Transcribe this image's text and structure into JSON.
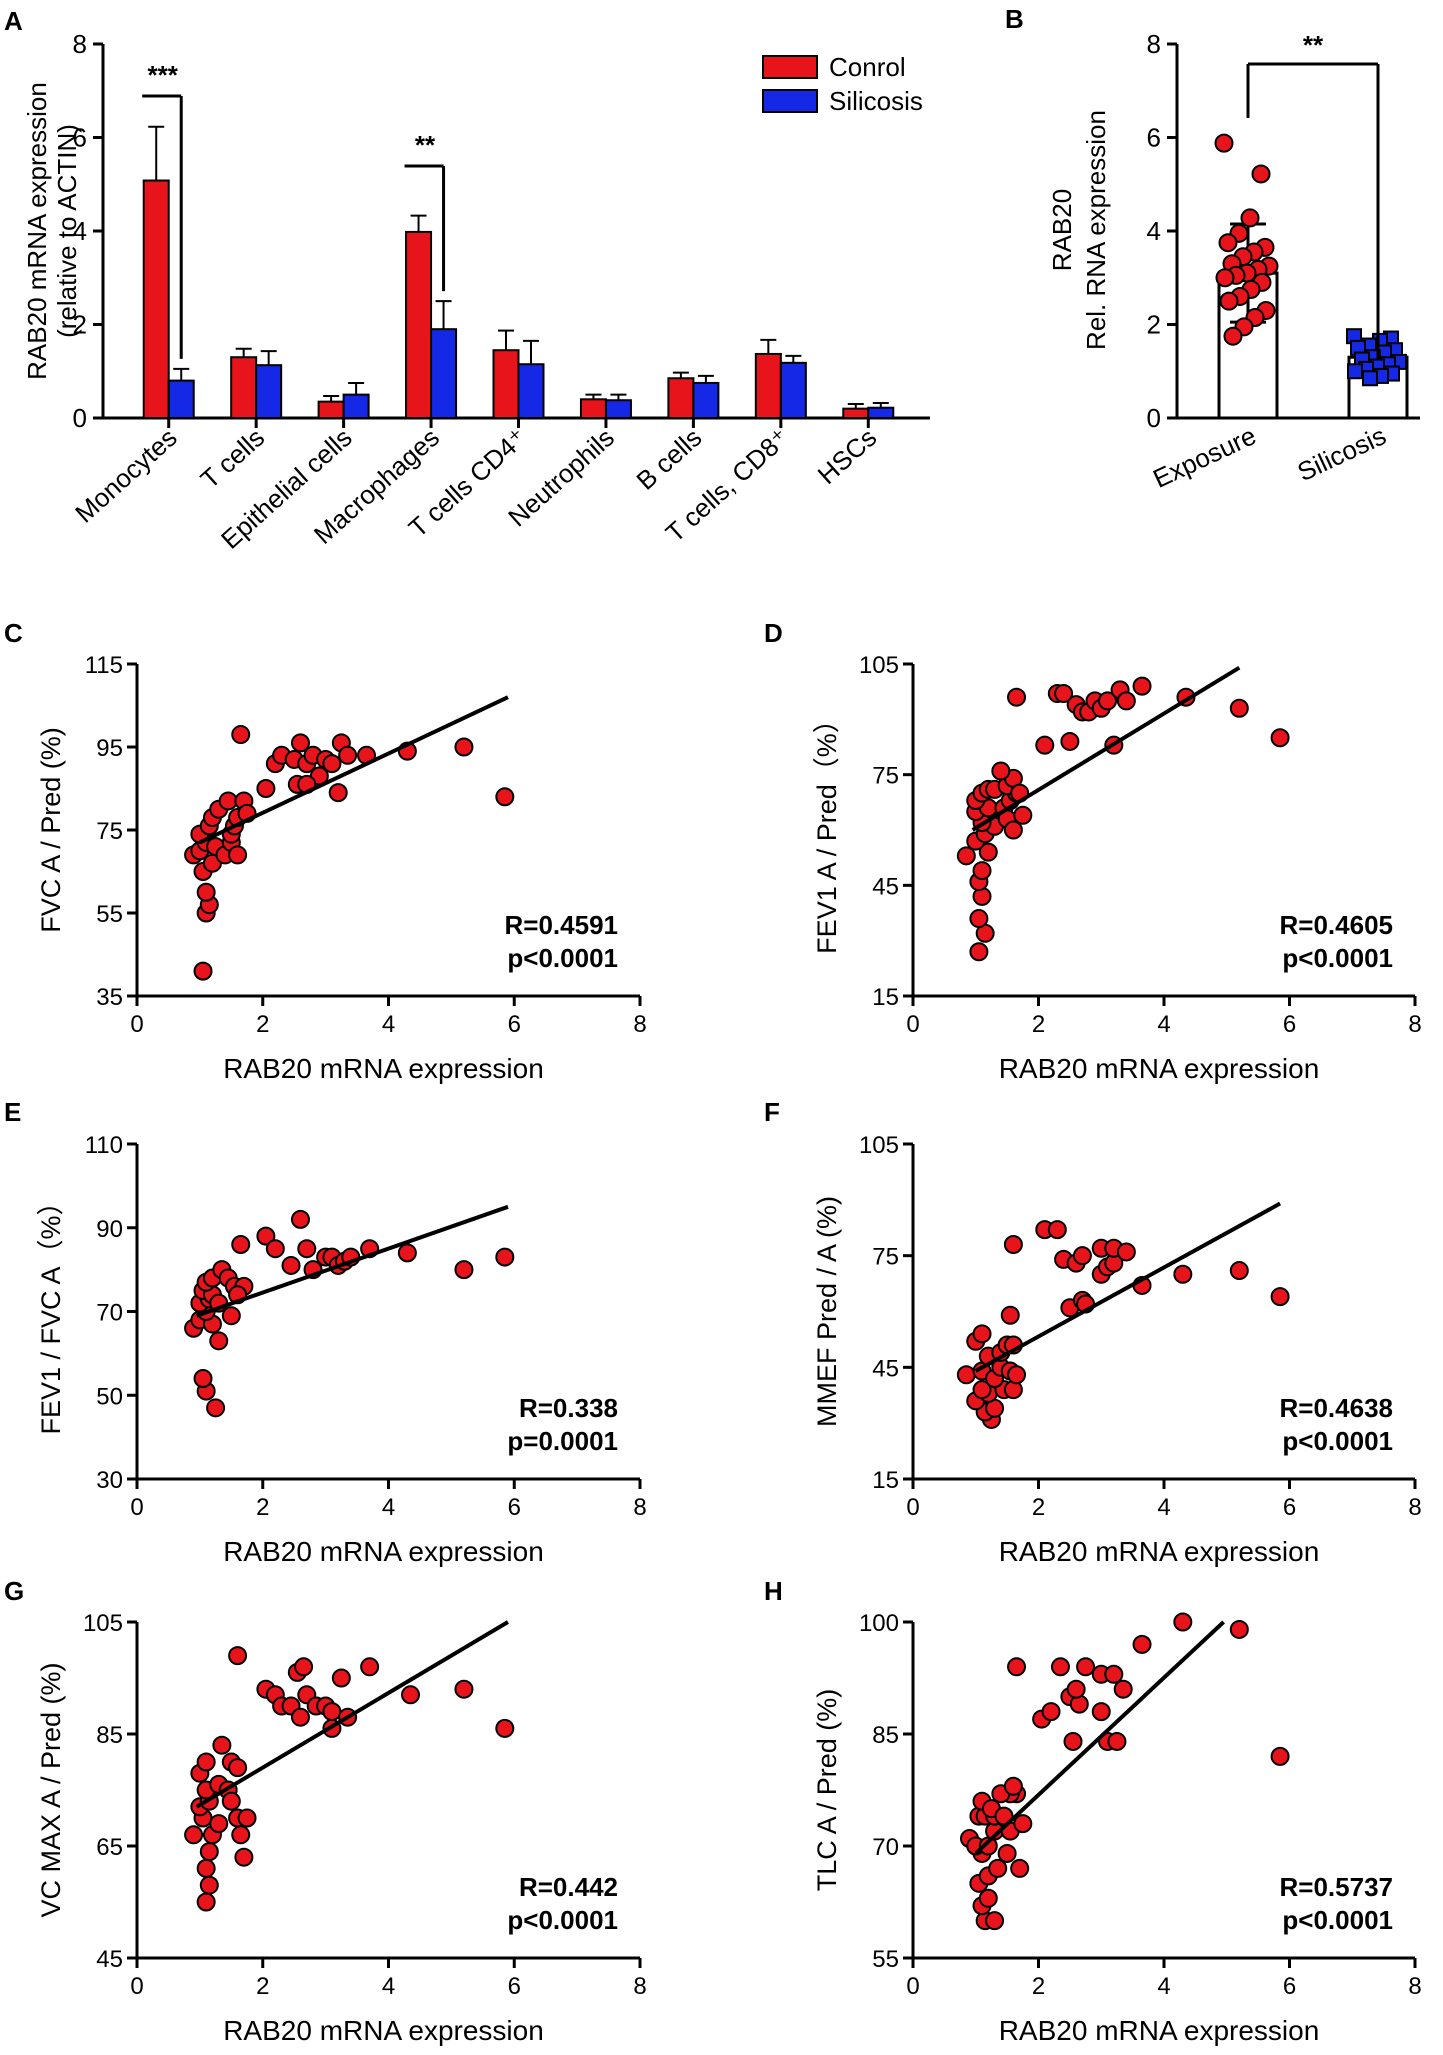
{
  "colors": {
    "control": "#e8141b",
    "silicosis": "#1428e6",
    "point": "#e8141b",
    "axis": "#000000"
  },
  "chart_data": [
    {
      "id": "A",
      "panel_label": "A",
      "type": "bar",
      "ylabel_lines": [
        "RAB20 mRNA expression",
        "(relative to ACTIN)"
      ],
      "ylim": [
        0,
        8
      ],
      "yticks": [
        "0",
        "2",
        "4",
        "6",
        "8"
      ],
      "categories": [
        "Monocytes",
        "T cells",
        "Epithelial cells",
        "Macrophages",
        "T cells CD4⁺",
        "Neutrophils",
        "B cells",
        "T cells, CD8⁺",
        "HSCs"
      ],
      "series": [
        {
          "name": "Conrol",
          "values": [
            5.08,
            1.3,
            0.35,
            3.98,
            1.45,
            0.4,
            0.85,
            1.37,
            0.2
          ],
          "errors": [
            1.15,
            0.18,
            0.12,
            0.35,
            0.42,
            0.1,
            0.12,
            0.3,
            0.1
          ]
        },
        {
          "name": "Silicosis",
          "values": [
            0.8,
            1.13,
            0.5,
            1.9,
            1.15,
            0.38,
            0.75,
            1.18,
            0.22
          ],
          "errors": [
            0.25,
            0.3,
            0.25,
            0.6,
            0.5,
            0.12,
            0.15,
            0.15,
            0.1
          ]
        }
      ],
      "significance": [
        {
          "category_index": 0,
          "label": "***"
        },
        {
          "category_index": 3,
          "label": "**"
        }
      ],
      "legend": [
        "Conrol",
        "Silicosis"
      ],
      "legend_position": "top-right"
    },
    {
      "id": "B",
      "panel_label": "B",
      "type": "bar",
      "ylabel_lines": [
        "RAB20",
        "Rel. RNA expression"
      ],
      "ylim": [
        0,
        8
      ],
      "yticks": [
        "0",
        "2",
        "4",
        "6",
        "8"
      ],
      "categories": [
        "Exposure",
        "Silicosis"
      ],
      "values": [
        3.1,
        1.3
      ],
      "errors": [
        1.05,
        0.25
      ],
      "significance_label": "**",
      "points": [
        [
          5.88,
          5.22,
          4.28,
          3.95,
          3.75,
          3.65,
          3.55,
          3.45,
          3.3,
          3.25,
          3.18,
          3.1,
          3.05,
          3.0,
          2.9,
          2.75,
          2.6,
          2.5,
          2.3,
          2.15,
          1.95,
          1.75
        ],
        [
          1.75,
          1.7,
          1.65,
          1.55,
          1.5,
          1.45,
          1.4,
          1.3,
          1.25,
          1.2,
          1.15,
          1.1,
          1.05,
          1.0,
          0.95,
          0.9,
          0.85
        ]
      ]
    },
    {
      "id": "C",
      "panel_label": "C",
      "type": "scatter",
      "xlabel": "RAB20 mRNA expression",
      "ylabel": "FVC A / Pred (%)",
      "xlim": [
        0,
        8
      ],
      "ylim": [
        35,
        115
      ],
      "xticks": [
        "0",
        "2",
        "4",
        "6",
        "8"
      ],
      "yticks": [
        "35",
        "55",
        "75",
        "95",
        "115"
      ],
      "stat_lines": [
        "R=0.4591",
        "p<0.0001"
      ],
      "fit": {
        "x": [
          1.0,
          5.9
        ],
        "y": [
          72,
          107
        ]
      },
      "points": [
        [
          1.05,
          41
        ],
        [
          1.1,
          55
        ],
        [
          1.15,
          57
        ],
        [
          1.1,
          60
        ],
        [
          1.05,
          65
        ],
        [
          0.9,
          69
        ],
        [
          1.2,
          67
        ],
        [
          1.0,
          70
        ],
        [
          1.1,
          72
        ],
        [
          1.0,
          74
        ],
        [
          1.15,
          76
        ],
        [
          1.2,
          78
        ],
        [
          1.3,
          80
        ],
        [
          1.25,
          71
        ],
        [
          1.4,
          69
        ],
        [
          1.5,
          72
        ],
        [
          1.6,
          69
        ],
        [
          1.5,
          74
        ],
        [
          1.55,
          76
        ],
        [
          1.6,
          78
        ],
        [
          1.45,
          82
        ],
        [
          1.7,
          82
        ],
        [
          1.75,
          79
        ],
        [
          1.65,
          98
        ],
        [
          2.05,
          85
        ],
        [
          2.2,
          91
        ],
        [
          2.3,
          93
        ],
        [
          2.5,
          92
        ],
        [
          2.6,
          96
        ],
        [
          2.7,
          91
        ],
        [
          2.8,
          93
        ],
        [
          2.9,
          88
        ],
        [
          2.55,
          86
        ],
        [
          2.7,
          86
        ],
        [
          3.0,
          92
        ],
        [
          3.1,
          91
        ],
        [
          3.2,
          84
        ],
        [
          3.25,
          96
        ],
        [
          3.35,
          93
        ],
        [
          3.65,
          93
        ],
        [
          4.3,
          94
        ],
        [
          5.2,
          95
        ],
        [
          5.85,
          83
        ]
      ]
    },
    {
      "id": "D",
      "panel_label": "D",
      "type": "scatter",
      "xlabel": "RAB20 mRNA expression",
      "ylabel": "FEV1 A / Pred（%）",
      "xlim": [
        0,
        8
      ],
      "ylim": [
        15,
        105
      ],
      "xticks": [
        "0",
        "2",
        "4",
        "6",
        "8"
      ],
      "yticks": [
        "15",
        "45",
        "75",
        "105"
      ],
      "stat_lines": [
        "R=0.4605",
        "p<0.0001"
      ],
      "fit": {
        "x": [
          0.95,
          5.2
        ],
        "y": [
          60,
          104
        ]
      },
      "points": [
        [
          1.05,
          27
        ],
        [
          1.15,
          32
        ],
        [
          1.05,
          36
        ],
        [
          1.1,
          42
        ],
        [
          1.05,
          46
        ],
        [
          1.1,
          49
        ],
        [
          0.85,
          53
        ],
        [
          1.2,
          54
        ],
        [
          1.0,
          57
        ],
        [
          1.15,
          59
        ],
        [
          1.3,
          61
        ],
        [
          1.1,
          62
        ],
        [
          1.0,
          65
        ],
        [
          1.2,
          66
        ],
        [
          1.0,
          68
        ],
        [
          1.1,
          70
        ],
        [
          1.2,
          71
        ],
        [
          1.3,
          71
        ],
        [
          1.45,
          66
        ],
        [
          1.5,
          63
        ],
        [
          1.6,
          60
        ],
        [
          1.55,
          68
        ],
        [
          1.75,
          64
        ],
        [
          1.65,
          70
        ],
        [
          1.5,
          72
        ],
        [
          1.6,
          74
        ],
        [
          1.7,
          70
        ],
        [
          1.4,
          76
        ],
        [
          1.65,
          96
        ],
        [
          2.1,
          83
        ],
        [
          2.3,
          97
        ],
        [
          2.4,
          97
        ],
        [
          2.5,
          84
        ],
        [
          2.6,
          94
        ],
        [
          2.7,
          92
        ],
        [
          2.8,
          92
        ],
        [
          2.9,
          95
        ],
        [
          3.0,
          93
        ],
        [
          3.1,
          95
        ],
        [
          3.2,
          83
        ],
        [
          3.3,
          98
        ],
        [
          3.4,
          95
        ],
        [
          3.65,
          99
        ],
        [
          4.35,
          96
        ],
        [
          5.2,
          93
        ],
        [
          5.85,
          85
        ]
      ]
    },
    {
      "id": "E",
      "panel_label": "E",
      "type": "scatter",
      "xlabel": "RAB20 mRNA expression",
      "ylabel": "FEV1 / FVC A（%）",
      "xlim": [
        0,
        8
      ],
      "ylim": [
        30,
        110
      ],
      "xticks": [
        "0",
        "2",
        "4",
        "6",
        "8"
      ],
      "yticks": [
        "30",
        "50",
        "70",
        "90",
        "110"
      ],
      "stat_lines": [
        "R=0.338",
        "p=0.0001"
      ],
      "fit": {
        "x": [
          0.95,
          5.9
        ],
        "y": [
          69,
          95
        ]
      },
      "points": [
        [
          1.25,
          47
        ],
        [
          1.1,
          51
        ],
        [
          1.05,
          54
        ],
        [
          0.9,
          66
        ],
        [
          1.0,
          68
        ],
        [
          1.2,
          67
        ],
        [
          1.3,
          63
        ],
        [
          1.1,
          70
        ],
        [
          1.0,
          72
        ],
        [
          1.15,
          73
        ],
        [
          1.05,
          75
        ],
        [
          1.2,
          74
        ],
        [
          1.3,
          72
        ],
        [
          1.1,
          77
        ],
        [
          1.2,
          78
        ],
        [
          1.35,
          80
        ],
        [
          1.45,
          78
        ],
        [
          1.55,
          76
        ],
        [
          1.5,
          69
        ],
        [
          1.7,
          76
        ],
        [
          1.6,
          74
        ],
        [
          1.65,
          86
        ],
        [
          2.05,
          88
        ],
        [
          2.2,
          85
        ],
        [
          2.45,
          81
        ],
        [
          2.6,
          92
        ],
        [
          2.7,
          85
        ],
        [
          2.8,
          80
        ],
        [
          3.0,
          83
        ],
        [
          3.1,
          83
        ],
        [
          3.2,
          81
        ],
        [
          3.3,
          82
        ],
        [
          3.4,
          83
        ],
        [
          3.7,
          85
        ],
        [
          4.3,
          84
        ],
        [
          5.2,
          80
        ],
        [
          5.85,
          83
        ]
      ]
    },
    {
      "id": "F",
      "panel_label": "F",
      "type": "scatter",
      "xlabel": "RAB20 mRNA expression",
      "ylabel": "MMEF Pred / A (%)",
      "xlim": [
        0,
        8
      ],
      "ylim": [
        15,
        105
      ],
      "xticks": [
        "0",
        "2",
        "4",
        "6",
        "8"
      ],
      "yticks": [
        "15",
        "45",
        "75",
        "105"
      ],
      "stat_lines": [
        "R=0.4638",
        "p<0.0001"
      ],
      "fit": {
        "x": [
          1.0,
          5.85
        ],
        "y": [
          44,
          89
        ]
      },
      "points": [
        [
          1.25,
          31
        ],
        [
          1.15,
          33
        ],
        [
          1.3,
          34
        ],
        [
          1.0,
          36
        ],
        [
          1.2,
          38
        ],
        [
          1.1,
          39
        ],
        [
          1.45,
          39
        ],
        [
          1.6,
          39
        ],
        [
          0.85,
          43
        ],
        [
          1.1,
          44
        ],
        [
          1.3,
          42
        ],
        [
          1.4,
          45
        ],
        [
          1.55,
          44
        ],
        [
          1.65,
          43
        ],
        [
          1.2,
          48
        ],
        [
          1.4,
          49
        ],
        [
          1.5,
          51
        ],
        [
          1.6,
          51
        ],
        [
          1.0,
          52
        ],
        [
          1.1,
          54
        ],
        [
          1.55,
          59
        ],
        [
          1.6,
          78
        ],
        [
          2.1,
          82
        ],
        [
          2.3,
          82
        ],
        [
          2.4,
          74
        ],
        [
          2.6,
          73
        ],
        [
          2.7,
          75
        ],
        [
          2.5,
          61
        ],
        [
          2.7,
          63
        ],
        [
          2.75,
          62
        ],
        [
          3.0,
          70
        ],
        [
          3.0,
          77
        ],
        [
          3.1,
          72
        ],
        [
          3.2,
          73
        ],
        [
          3.2,
          77
        ],
        [
          3.4,
          76
        ],
        [
          3.65,
          67
        ],
        [
          4.3,
          70
        ],
        [
          5.2,
          71
        ],
        [
          5.85,
          64
        ]
      ]
    },
    {
      "id": "G",
      "panel_label": "G",
      "type": "scatter",
      "xlabel": "RAB20 mRNA expression",
      "ylabel": "VC MAX A / Pred (%)",
      "xlim": [
        0,
        8
      ],
      "ylim": [
        45,
        105
      ],
      "xticks": [
        "0",
        "2",
        "4",
        "6",
        "8"
      ],
      "yticks": [
        "45",
        "65",
        "85",
        "105"
      ],
      "stat_lines": [
        "R=0.442",
        "p<0.0001"
      ],
      "fit": {
        "x": [
          0.95,
          5.9
        ],
        "y": [
          72,
          105
        ]
      },
      "points": [
        [
          1.1,
          55
        ],
        [
          1.15,
          58
        ],
        [
          1.1,
          61
        ],
        [
          1.15,
          64
        ],
        [
          0.9,
          67
        ],
        [
          1.2,
          67
        ],
        [
          1.05,
          70
        ],
        [
          1.3,
          69
        ],
        [
          1.0,
          72
        ],
        [
          1.15,
          73
        ],
        [
          1.1,
          75
        ],
        [
          1.3,
          76
        ],
        [
          1.0,
          78
        ],
        [
          1.1,
          80
        ],
        [
          1.35,
          83
        ],
        [
          1.5,
          80
        ],
        [
          1.6,
          79
        ],
        [
          1.45,
          75
        ],
        [
          1.5,
          73
        ],
        [
          1.6,
          70
        ],
        [
          1.75,
          70
        ],
        [
          1.65,
          67
        ],
        [
          1.7,
          63
        ],
        [
          1.6,
          99
        ],
        [
          2.05,
          93
        ],
        [
          2.2,
          92
        ],
        [
          2.3,
          90
        ],
        [
          2.45,
          90
        ],
        [
          2.55,
          96
        ],
        [
          2.65,
          97
        ],
        [
          2.7,
          92
        ],
        [
          2.85,
          90
        ],
        [
          2.6,
          88
        ],
        [
          3.0,
          90
        ],
        [
          3.1,
          86
        ],
        [
          3.1,
          89
        ],
        [
          3.25,
          95
        ],
        [
          3.35,
          88
        ],
        [
          3.7,
          97
        ],
        [
          4.35,
          92
        ],
        [
          5.2,
          93
        ],
        [
          5.85,
          86
        ]
      ]
    },
    {
      "id": "H",
      "panel_label": "H",
      "type": "scatter",
      "xlabel": "RAB20 mRNA expression",
      "ylabel": "TLC A / Pred (%)",
      "xlim": [
        0,
        8
      ],
      "ylim": [
        55,
        100
      ],
      "xticks": [
        "0",
        "2",
        "4",
        "6",
        "8"
      ],
      "yticks": [
        "55",
        "70",
        "85",
        "100"
      ],
      "stat_lines": [
        "R=0.5737",
        "p<0.0001"
      ],
      "fit": {
        "x": [
          1.0,
          4.95
        ],
        "y": [
          69,
          100
        ]
      },
      "points": [
        [
          1.15,
          60
        ],
        [
          1.3,
          60
        ],
        [
          1.1,
          62
        ],
        [
          1.2,
          63
        ],
        [
          1.05,
          65
        ],
        [
          1.2,
          66
        ],
        [
          1.35,
          67
        ],
        [
          1.1,
          69
        ],
        [
          0.9,
          71
        ],
        [
          1.0,
          70
        ],
        [
          1.2,
          70
        ],
        [
          1.3,
          72
        ],
        [
          1.05,
          74
        ],
        [
          1.15,
          74
        ],
        [
          1.3,
          74
        ],
        [
          1.1,
          76
        ],
        [
          1.25,
          75
        ],
        [
          1.45,
          74
        ],
        [
          1.55,
          72
        ],
        [
          1.5,
          69
        ],
        [
          1.7,
          67
        ],
        [
          1.75,
          73
        ],
        [
          1.65,
          77
        ],
        [
          1.55,
          77
        ],
        [
          1.4,
          77
        ],
        [
          1.6,
          78
        ],
        [
          1.65,
          94
        ],
        [
          2.05,
          87
        ],
        [
          2.2,
          88
        ],
        [
          2.35,
          94
        ],
        [
          2.5,
          90
        ],
        [
          2.55,
          84
        ],
        [
          2.65,
          89
        ],
        [
          2.75,
          94
        ],
        [
          2.6,
          91
        ],
        [
          3.0,
          93
        ],
        [
          3.0,
          88
        ],
        [
          3.1,
          84
        ],
        [
          3.2,
          93
        ],
        [
          3.25,
          84
        ],
        [
          3.35,
          91
        ],
        [
          3.65,
          97
        ],
        [
          4.3,
          100
        ],
        [
          5.2,
          99
        ],
        [
          5.85,
          82
        ]
      ]
    }
  ]
}
